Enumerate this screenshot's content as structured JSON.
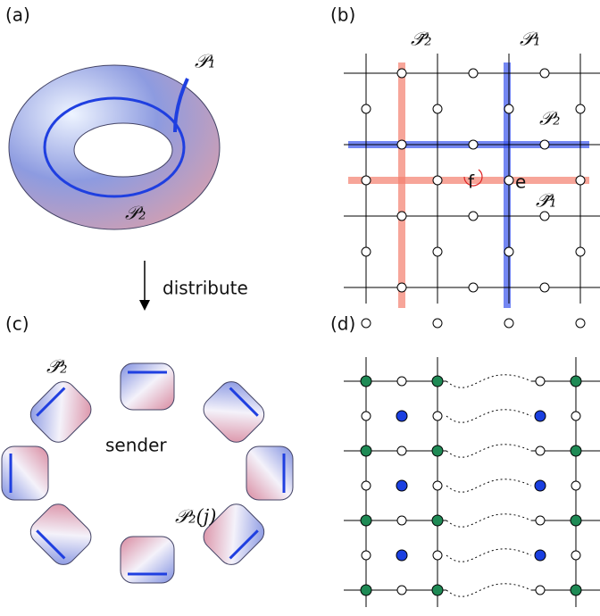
{
  "panels": [
    {
      "label": "(a)",
      "annotations": [
        "𝒫₁",
        "𝒫₂"
      ]
    },
    {
      "label": "(b)",
      "annotations": [
        "𝒫̃₂",
        "𝒫₁",
        "𝒫₂",
        "𝒫̃₁",
        "f",
        "e"
      ]
    },
    {
      "label": "(c)",
      "annotations": [
        "𝒫̃₂",
        "sender",
        "𝒫₂(j)"
      ]
    },
    {
      "label": "(d)",
      "annotations": []
    }
  ],
  "arrow_label": "distribute"
}
